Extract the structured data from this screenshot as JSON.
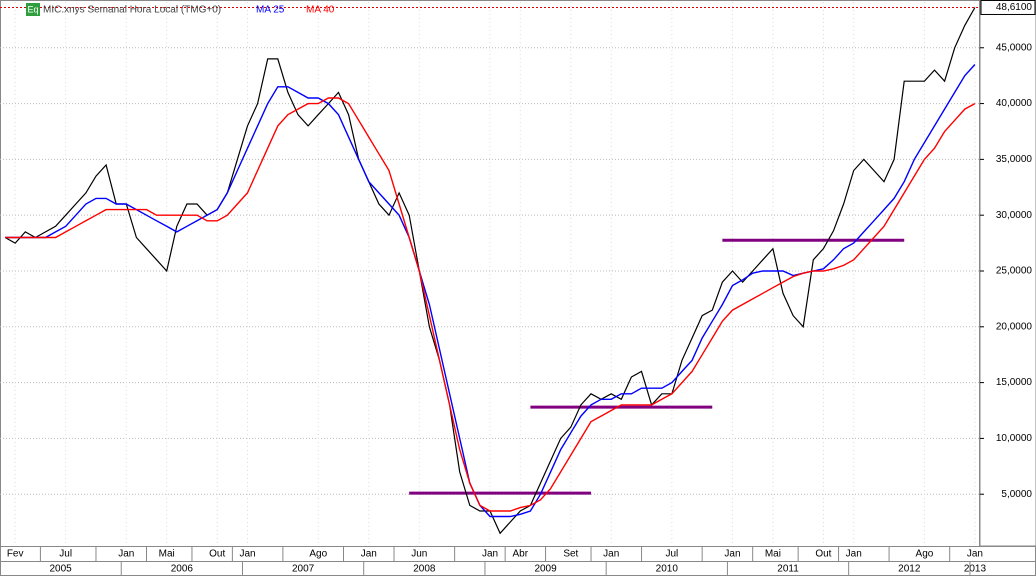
{
  "chart_data": {
    "type": "line",
    "title": "MIC.xnys Semanal Hora Local (TMG+0)",
    "badge": "Eq",
    "categories": [
      null,
      "Fev",
      null,
      null,
      null,
      null,
      "Jul",
      null,
      null,
      null,
      null,
      null,
      "Jan",
      null,
      null,
      null,
      "Mai",
      null,
      null,
      null,
      null,
      "Out",
      null,
      null,
      "Jan",
      null,
      null,
      null,
      null,
      null,
      null,
      "Ago",
      null,
      null,
      null,
      null,
      "Jan",
      null,
      null,
      null,
      null,
      "Jun",
      null,
      null,
      null,
      null,
      null,
      null,
      "Jan",
      null,
      null,
      "Abr",
      null,
      null,
      null,
      null,
      "Set",
      null,
      null,
      null,
      "Jan",
      null,
      null,
      null,
      null,
      null,
      "Jul",
      null,
      null,
      null,
      null,
      null,
      "Jan",
      null,
      null,
      null,
      "Mai",
      null,
      null,
      null,
      null,
      "Out",
      null,
      null,
      "Jan",
      null,
      null,
      null,
      null,
      null,
      null,
      "Ago",
      null,
      null,
      null,
      null,
      "Jan"
    ],
    "years": [
      "2005",
      "2006",
      "2007",
      "2008",
      "2009",
      "2010",
      "2011",
      "2012",
      "2013"
    ],
    "series": [
      {
        "name": "MIC.xnys",
        "color": "#000000",
        "values": [
          28,
          27.5,
          28.5,
          28,
          28.5,
          29,
          30,
          31,
          32,
          33.5,
          34.5,
          31,
          31,
          28,
          27,
          26,
          25,
          29,
          31,
          31,
          30,
          30.5,
          32,
          35,
          38,
          40,
          44,
          44,
          41,
          39,
          38,
          39,
          40,
          41,
          39,
          35,
          33,
          31,
          30,
          32,
          30,
          25,
          20,
          17,
          13,
          7,
          4,
          3.5,
          3.5,
          1.5,
          2.5,
          3.5,
          4,
          6,
          8,
          10,
          11,
          13,
          14,
          13.5,
          14,
          13.5,
          15.5,
          16,
          13,
          14,
          14,
          17,
          19,
          21,
          21.5,
          24,
          25,
          24,
          25,
          26,
          27,
          23,
          21,
          20,
          26,
          27,
          28.6,
          31,
          34,
          35,
          34,
          33,
          35,
          42,
          42,
          42,
          43,
          42,
          45,
          47,
          48.61
        ]
      },
      {
        "name": "MA 25",
        "color": "#0000ff",
        "values": [
          28,
          28,
          28,
          28,
          28,
          28.5,
          29,
          30,
          31,
          31.5,
          31.5,
          31,
          31,
          30.5,
          30,
          29.5,
          29,
          28.5,
          29,
          29.5,
          30,
          30.5,
          32,
          34,
          36,
          38,
          40,
          41.5,
          41.5,
          41,
          40.5,
          40.5,
          40,
          39,
          37,
          35,
          33,
          32,
          31,
          30,
          28,
          25,
          22,
          18,
          14,
          10,
          6,
          4,
          3,
          3,
          3,
          3.2,
          3.5,
          5,
          7,
          9,
          10.5,
          12,
          13,
          13.5,
          13.5,
          14,
          14,
          14.5,
          14.5,
          14.5,
          15,
          16,
          17,
          19,
          20.5,
          22,
          23.7,
          24.2,
          24.8,
          25,
          25,
          25,
          24.6,
          24.8,
          25,
          25.2,
          26,
          27,
          27.5,
          28.5,
          29.5,
          30.5,
          31.5,
          33,
          35,
          36.5,
          38,
          39.5,
          41,
          42.5,
          43.5
        ]
      },
      {
        "name": "MA 40",
        "color": "#ff0000",
        "values": [
          28,
          28,
          28,
          28,
          28,
          28,
          28.5,
          29,
          29.5,
          30,
          30.5,
          30.5,
          30.5,
          30.5,
          30.5,
          30,
          30,
          30,
          30,
          30,
          29.5,
          29.5,
          30,
          31,
          32,
          34,
          36,
          38,
          39,
          39.5,
          40,
          40,
          40.5,
          40.5,
          40,
          38.5,
          37,
          35.5,
          34,
          31,
          28,
          25,
          21,
          17,
          13,
          9,
          6,
          4,
          3.5,
          3.5,
          3.5,
          3.8,
          4,
          4.5,
          5.5,
          7,
          8.5,
          10,
          11.5,
          12,
          12.5,
          13,
          13,
          13,
          13,
          13.5,
          14,
          15,
          16,
          17.5,
          19,
          20.5,
          21.5,
          22,
          22.5,
          23,
          23.5,
          24,
          24.5,
          24.8,
          25,
          25,
          25.2,
          25.5,
          26,
          27,
          28,
          29,
          30.5,
          32,
          33.5,
          35,
          36,
          37.5,
          38.5,
          39.5,
          40
        ]
      }
    ],
    "levels": [
      {
        "value": 5.1,
        "from": 40,
        "to": 58
      },
      {
        "value": 12.8,
        "from": 52,
        "to": 70
      },
      {
        "value": 27.75,
        "from": 71,
        "to": 89
      }
    ],
    "level_color": "#800080",
    "last": {
      "value": 48.61,
      "label": "48,6100"
    },
    "ylim": [
      0.36,
      49.1
    ],
    "yticks": [
      {
        "value": 5,
        "label": "5,0000"
      },
      {
        "value": 10,
        "label": "10,0000"
      },
      {
        "value": 15,
        "label": "15,0000"
      },
      {
        "value": 20,
        "label": "20,0000"
      },
      {
        "value": 25,
        "label": "25,0000"
      },
      {
        "value": 30,
        "label": "30,0000"
      },
      {
        "value": 35,
        "label": "35,0000"
      },
      {
        "value": 40,
        "label": "40,0000"
      },
      {
        "value": 45,
        "label": "45,0000"
      }
    ],
    "grid": true
  }
}
